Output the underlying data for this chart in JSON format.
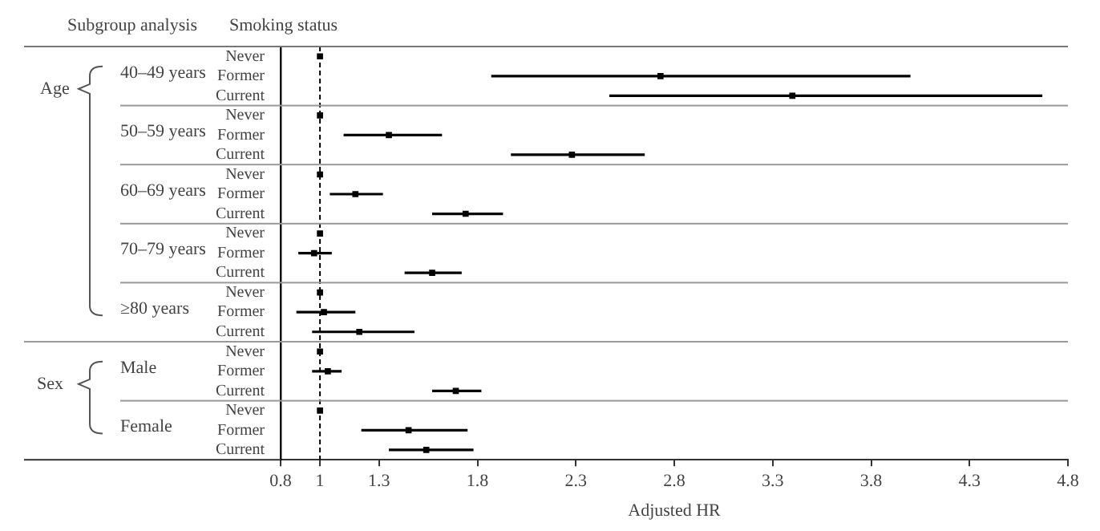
{
  "chart_data": {
    "type": "scatter",
    "orientation": "horizontal",
    "marker": "square",
    "color": "#000000",
    "legend": false,
    "xlabel": "Adjusted HR",
    "categories": [
      "Never",
      "Former",
      "Current",
      "Never",
      "Former",
      "Current",
      "Never",
      "Former",
      "Current",
      "Never",
      "Former",
      "Current",
      "Never",
      "Former",
      "Current",
      "Never",
      "Former",
      "Current",
      "Never",
      "Former",
      "Current"
    ],
    "values": [
      1,
      2.73,
      3.4,
      1,
      1.35,
      2.28,
      1,
      1.18,
      1.74,
      1,
      0.97,
      1.57,
      1,
      1.02,
      1.2,
      1,
      1.04,
      1.69,
      1,
      1.45,
      1.54
    ],
    "errors": [
      null,
      [
        1.87,
        4.0
      ],
      [
        2.47,
        4.67
      ],
      null,
      [
        1.12,
        1.62
      ],
      [
        1.97,
        2.65
      ],
      null,
      [
        1.05,
        1.32
      ],
      [
        1.57,
        1.93
      ],
      null,
      [
        0.89,
        1.06
      ],
      [
        1.43,
        1.72
      ],
      null,
      [
        0.88,
        1.18
      ],
      [
        0.96,
        1.48
      ],
      null,
      [
        0.96,
        1.11
      ],
      [
        1.57,
        1.82
      ],
      null,
      [
        1.21,
        1.75
      ],
      [
        1.35,
        1.78
      ]
    ],
    "xlim": [
      0.8,
      4.8
    ],
    "xticks": [
      0.8,
      1,
      1.3,
      1.8,
      2.3,
      2.8,
      3.3,
      3.8,
      4.3,
      4.8
    ],
    "ref_lines": [
      {
        "axis": "x",
        "value": 1,
        "color": "#000000",
        "line_style": "dashed"
      }
    ],
    "annotations": [
      "Subgroup analysis",
      "Smoking status",
      "Age",
      "40–49 years",
      "50–59 years",
      "60–69 years",
      "70–79 years",
      "≥80 years",
      "Sex",
      "Male",
      "Female"
    ]
  }
}
